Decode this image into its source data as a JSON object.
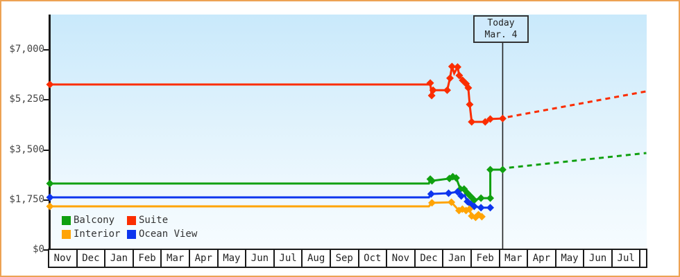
{
  "window": {
    "border_color": "#eda254",
    "axis_color": "#1a1a1a",
    "plot_bg_top": "#c9e9fb",
    "plot_bg_bottom": "#f6fcff"
  },
  "today_marker": {
    "line1": "Today",
    "line2": "Mar. 4",
    "month_unit": 16.07
  },
  "y_axis": {
    "ticks": [
      {
        "value": 0,
        "label": "$0"
      },
      {
        "value": 1750,
        "label": "$1,750"
      },
      {
        "value": 3500,
        "label": "$3,500"
      },
      {
        "value": 5250,
        "label": "$5,250"
      },
      {
        "value": 7000,
        "label": "$7,000"
      }
    ]
  },
  "x_axis": {
    "months": [
      "Nov",
      "Dec",
      "Jan",
      "Feb",
      "Mar",
      "Apr",
      "May",
      "Jun",
      "Jul",
      "Aug",
      "Sep",
      "Oct",
      "Nov",
      "Dec",
      "Jan",
      "Feb",
      "Mar",
      "Apr",
      "May",
      "Jun",
      "Jul"
    ]
  },
  "legend": {
    "items": [
      {
        "label": "Balcony",
        "color": "#10a010"
      },
      {
        "label": "Suite",
        "color": "#fb2d00"
      },
      {
        "label": "Interior",
        "color": "#ffa405"
      },
      {
        "label": "Ocean View",
        "color": "#0c35ee"
      }
    ]
  },
  "chart_data": {
    "type": "line",
    "currency": "USD",
    "ylim": [
      0,
      7000
    ],
    "x_unit": "months from first Nov; 1.0 = one month; today (Mar. 4) = 16.07",
    "today_x": 16.07,
    "series": [
      {
        "name": "Suite",
        "color": "#fb2d00",
        "style": "solid",
        "points": [
          [
            0,
            5790,
            1
          ],
          [
            13.45,
            5790,
            0
          ],
          [
            13.5,
            5840,
            1
          ],
          [
            13.55,
            5400,
            1
          ],
          [
            13.6,
            5590,
            1
          ],
          [
            14.1,
            5590,
            1
          ],
          [
            14.2,
            6010,
            1
          ],
          [
            14.27,
            6420,
            1
          ],
          [
            14.35,
            6180,
            0
          ],
          [
            14.47,
            6400,
            1
          ],
          [
            14.53,
            6105,
            1
          ],
          [
            14.65,
            5935,
            1
          ],
          [
            14.77,
            5815,
            1
          ],
          [
            14.85,
            5670,
            1
          ],
          [
            14.9,
            5090,
            1
          ],
          [
            14.97,
            4480,
            1
          ],
          [
            15.45,
            4480,
            1
          ],
          [
            15.63,
            4580,
            1
          ],
          [
            16.07,
            4600,
            1
          ]
        ]
      },
      {
        "name": "Suite forecast",
        "color": "#fb2d00",
        "style": "dashed",
        "points": [
          [
            16.25,
            4650
          ],
          [
            21.17,
            5550
          ]
        ]
      },
      {
        "name": "Balcony",
        "color": "#10a010",
        "style": "solid",
        "points": [
          [
            0,
            2325,
            1
          ],
          [
            13.45,
            2325,
            0
          ],
          [
            13.5,
            2480,
            1
          ],
          [
            13.56,
            2420,
            1
          ],
          [
            14.18,
            2500,
            1
          ],
          [
            14.3,
            2565,
            1
          ],
          [
            14.42,
            2520,
            1
          ],
          [
            14.57,
            2130,
            1
          ],
          [
            14.7,
            2130,
            1
          ],
          [
            14.82,
            1985,
            1
          ],
          [
            14.94,
            1865,
            1
          ],
          [
            15.06,
            1745,
            1
          ],
          [
            15.3,
            1815,
            1
          ],
          [
            15.63,
            1815,
            1
          ],
          [
            15.63,
            2810,
            1
          ],
          [
            16.07,
            2810,
            1
          ]
        ]
      },
      {
        "name": "Balcony forecast",
        "color": "#10a010",
        "style": "dashed",
        "points": [
          [
            16.3,
            2880
          ],
          [
            21.17,
            3390
          ]
        ]
      },
      {
        "name": "Ocean View",
        "color": "#0c35ee",
        "style": "solid",
        "points": [
          [
            0,
            1840,
            1
          ],
          [
            13.45,
            1840,
            0
          ],
          [
            13.53,
            1960,
            1
          ],
          [
            14.15,
            1985,
            1
          ],
          [
            14.47,
            2035,
            1
          ],
          [
            14.6,
            1890,
            1
          ],
          [
            14.72,
            1915,
            0
          ],
          [
            14.82,
            1695,
            1
          ],
          [
            14.94,
            1600,
            1
          ],
          [
            15.06,
            1525,
            1
          ],
          [
            15.3,
            1480,
            1
          ],
          [
            15.63,
            1480,
            1
          ]
        ]
      },
      {
        "name": "Interior",
        "color": "#ffa405",
        "style": "solid",
        "points": [
          [
            0,
            1525,
            1
          ],
          [
            13.45,
            1525,
            0
          ],
          [
            13.56,
            1650,
            1
          ],
          [
            14.25,
            1670,
            1
          ],
          [
            14.52,
            1380,
            1
          ],
          [
            14.64,
            1430,
            1
          ],
          [
            14.77,
            1380,
            1
          ],
          [
            14.89,
            1430,
            1
          ],
          [
            14.97,
            1190,
            1
          ],
          [
            15.11,
            1140,
            1
          ],
          [
            15.21,
            1235,
            1
          ],
          [
            15.33,
            1165,
            1
          ]
        ]
      }
    ]
  }
}
